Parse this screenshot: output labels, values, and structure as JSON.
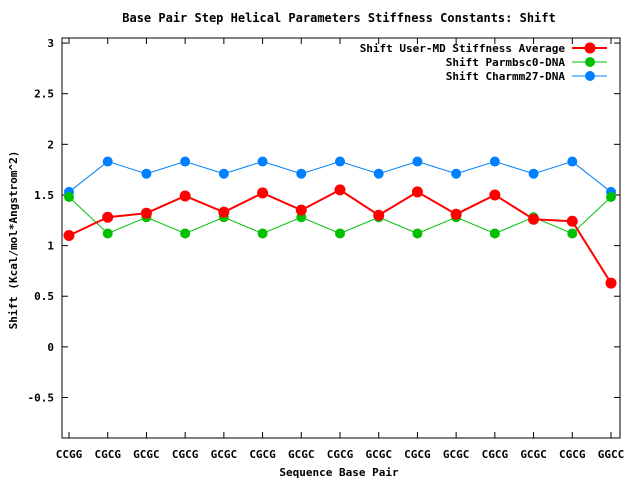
{
  "chart_data": {
    "type": "line",
    "title": "Base Pair Step Helical Parameters Stiffness Constants: Shift",
    "xlabel": "Sequence Base Pair",
    "ylabel": "Shift (Kcal/mol*Angstrom^2)",
    "categories": [
      "CCGG",
      "CGCG",
      "GCGC",
      "CGCG",
      "GCGC",
      "CGCG",
      "GCGC",
      "CGCG",
      "GCGC",
      "CGCG",
      "GCGC",
      "CGCG",
      "GCGC",
      "CGCG",
      "GGCC"
    ],
    "ylim": [
      -0.9,
      3.05
    ],
    "yticks": [
      -0.5,
      0,
      0.5,
      1,
      1.5,
      2,
      2.5,
      3
    ],
    "ytick_labels": [
      "-0.5",
      "0",
      "0.5",
      "1",
      "1.5",
      "2",
      "2.5",
      "3"
    ],
    "grid": false,
    "legend_position": "top-right",
    "series": [
      {
        "name": "Shift User-MD Stiffness Average",
        "color": "#ff0000",
        "values": [
          1.1,
          1.28,
          1.32,
          1.49,
          1.33,
          1.52,
          1.35,
          1.55,
          1.3,
          1.53,
          1.31,
          1.5,
          1.26,
          1.24,
          0.63
        ]
      },
      {
        "name": "Shift Parmbsc0-DNA",
        "color": "#00c000",
        "values": [
          1.48,
          1.12,
          1.28,
          1.12,
          1.28,
          1.12,
          1.28,
          1.12,
          1.28,
          1.12,
          1.28,
          1.12,
          1.28,
          1.12,
          1.48
        ]
      },
      {
        "name": "Shift Charmm27-DNA",
        "color": "#0080ff",
        "values": [
          1.53,
          1.83,
          1.71,
          1.83,
          1.71,
          1.83,
          1.71,
          1.83,
          1.71,
          1.83,
          1.71,
          1.83,
          1.71,
          1.83,
          1.53
        ]
      }
    ]
  }
}
